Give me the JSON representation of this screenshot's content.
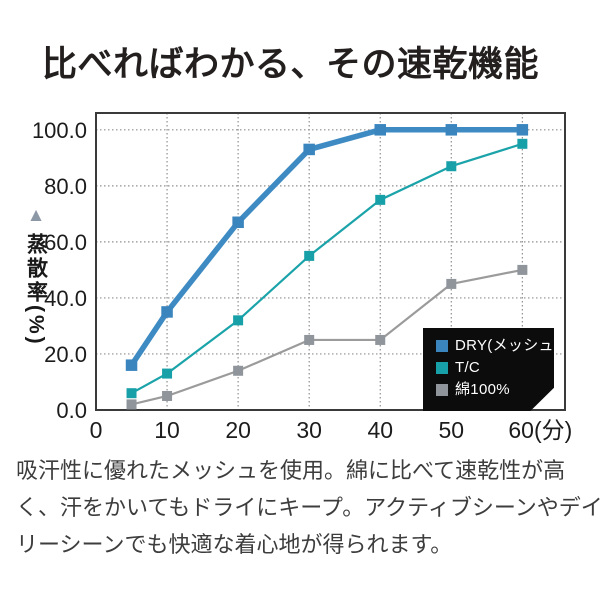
{
  "title": "比べればわかる、その速乾機能",
  "icons": {
    "y_axis_marker": "▲"
  },
  "chart_data": {
    "type": "line",
    "title": "",
    "xlabel": "",
    "ylabel": "蒸散率(%)",
    "x_unit": "分",
    "xlim": [
      0,
      66
    ],
    "ylim": [
      0,
      106
    ],
    "grid": {
      "on": true,
      "x_at": [
        10,
        20,
        30,
        40,
        50,
        60
      ],
      "y_at": [
        20,
        40,
        60,
        80,
        100
      ]
    },
    "x": [
      5,
      10,
      20,
      30,
      40,
      50,
      60
    ],
    "x_ticks": [
      {
        "v": 0,
        "label": "0"
      },
      {
        "v": 10,
        "label": "10"
      },
      {
        "v": 20,
        "label": "20"
      },
      {
        "v": 30,
        "label": "30"
      },
      {
        "v": 40,
        "label": "40"
      },
      {
        "v": 50,
        "label": "50"
      },
      {
        "v": 60,
        "label": "60(分)"
      }
    ],
    "y_ticks": [
      {
        "v": 0,
        "label": "0.0"
      },
      {
        "v": 20,
        "label": "20.0"
      },
      {
        "v": 40,
        "label": "40.0"
      },
      {
        "v": 60,
        "label": "60.0"
      },
      {
        "v": 80,
        "label": "80.0"
      },
      {
        "v": 100,
        "label": "100.0"
      }
    ],
    "series": [
      {
        "name": "DRY(メッシュ)",
        "color": "#3e8bc4",
        "marker_color": "#3a85be",
        "line_width": 5.5,
        "marker_size": 11.5,
        "values": [
          16,
          35,
          67,
          93,
          100,
          100,
          100
        ]
      },
      {
        "name": "T/C",
        "color": "#1ba3aa",
        "marker_color": "#18a0a8",
        "line_width": 2.2,
        "marker_size": 10,
        "values": [
          6,
          13,
          32,
          55,
          75,
          87,
          95
        ]
      },
      {
        "name": "綿100%",
        "color": "#9b9b9b",
        "marker_color": "#8f959b",
        "line_width": 2.2,
        "marker_size": 10,
        "values": [
          2,
          5,
          14,
          25,
          25,
          45,
          50
        ]
      }
    ],
    "legend_position": "bottom-right",
    "legend_bg": "#0c0c0c",
    "border_color": "#3a3a3a",
    "grid_color": "#8f8f8f"
  },
  "description_lines": [
    "吸汗性に優れたメッシュを使用。綿に比べて速乾性が高",
    "く、汗をかいてもドライにキープ。アクティブシーンやデイ",
    "リーシーンでも快適な着心地が得られます。"
  ]
}
